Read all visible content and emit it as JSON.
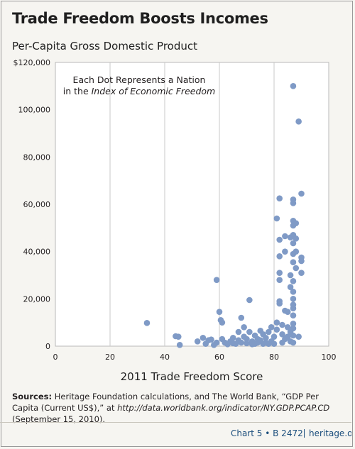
{
  "chart_data": {
    "type": "scatter",
    "title": "Trade Freedom Boosts Incomes",
    "subtitle": "Per-Capita Gross Domestic Product",
    "annotation_line1": "Each Dot Represents a Nation",
    "annotation_line2_prefix": "in the ",
    "annotation_line2_italic": "Index of Economic Freedom",
    "xlabel": "2011 Trade Freedom Score",
    "ylabel": "",
    "xlim": [
      0,
      100
    ],
    "ylim": [
      0,
      120000
    ],
    "x_ticks": [
      "0",
      "20",
      "40",
      "60",
      "80",
      "100"
    ],
    "y_ticks": [
      "0",
      "20,000",
      "40,000",
      "60,000",
      "80,000",
      "100,000",
      "$120,000"
    ],
    "grid": "vertical",
    "dot_color": "#7f9ac6",
    "points": [
      [
        33.5,
        9800
      ],
      [
        44,
        4200
      ],
      [
        45,
        4000
      ],
      [
        45.5,
        500
      ],
      [
        52,
        2000
      ],
      [
        54,
        3500
      ],
      [
        55,
        1000
      ],
      [
        56,
        2500
      ],
      [
        57,
        2800
      ],
      [
        58,
        500
      ],
      [
        59,
        1500
      ],
      [
        59,
        28000
      ],
      [
        60,
        14500
      ],
      [
        60.5,
        11000
      ],
      [
        61,
        10000
      ],
      [
        61,
        3000
      ],
      [
        62,
        1500
      ],
      [
        63,
        800
      ],
      [
        64,
        2000
      ],
      [
        65,
        1200
      ],
      [
        65,
        3500
      ],
      [
        66,
        1000
      ],
      [
        67,
        2500
      ],
      [
        67,
        6000
      ],
      [
        68,
        1500
      ],
      [
        68,
        12000
      ],
      [
        69,
        8000
      ],
      [
        69,
        4000
      ],
      [
        70,
        1200
      ],
      [
        70,
        3000
      ],
      [
        71,
        19500
      ],
      [
        71,
        6000
      ],
      [
        72,
        2000
      ],
      [
        72,
        800
      ],
      [
        73,
        4500
      ],
      [
        73,
        1000
      ],
      [
        74,
        3000
      ],
      [
        74,
        1500
      ],
      [
        75,
        6500
      ],
      [
        75,
        2500
      ],
      [
        76,
        1000
      ],
      [
        76,
        5000
      ],
      [
        77,
        1500
      ],
      [
        77,
        3500
      ],
      [
        78,
        6000
      ],
      [
        78,
        1000
      ],
      [
        79,
        8000
      ],
      [
        79,
        2000
      ],
      [
        80,
        4000
      ],
      [
        80,
        1000
      ],
      [
        81,
        10000
      ],
      [
        81,
        7000
      ],
      [
        81,
        54000
      ],
      [
        82,
        62500
      ],
      [
        82,
        45000
      ],
      [
        82,
        38000
      ],
      [
        82,
        31000
      ],
      [
        82,
        28000
      ],
      [
        82,
        19000
      ],
      [
        82,
        18000
      ],
      [
        83,
        9000
      ],
      [
        83,
        5000
      ],
      [
        83,
        1500
      ],
      [
        84,
        46500
      ],
      [
        84,
        40000
      ],
      [
        84,
        15000
      ],
      [
        84,
        3000
      ],
      [
        85,
        14500
      ],
      [
        85,
        8000
      ],
      [
        85,
        4000
      ],
      [
        86,
        46000
      ],
      [
        86,
        30000
      ],
      [
        86,
        25000
      ],
      [
        86,
        6000
      ],
      [
        86,
        2000
      ],
      [
        87,
        110000
      ],
      [
        87,
        62000
      ],
      [
        87,
        60500
      ],
      [
        87,
        53000
      ],
      [
        87,
        51000
      ],
      [
        87,
        47000
      ],
      [
        87,
        43500
      ],
      [
        87,
        39000
      ],
      [
        87,
        35500
      ],
      [
        87,
        27500
      ],
      [
        87,
        23000
      ],
      [
        87,
        20000
      ],
      [
        87,
        17500
      ],
      [
        87,
        16000
      ],
      [
        87,
        13000
      ],
      [
        87,
        9500
      ],
      [
        87,
        7500
      ],
      [
        87,
        4500
      ],
      [
        87,
        1500
      ],
      [
        88,
        52000
      ],
      [
        88,
        45500
      ],
      [
        88,
        40000
      ],
      [
        88,
        33000
      ],
      [
        89,
        95000
      ],
      [
        89,
        4000
      ],
      [
        90,
        64500
      ],
      [
        90,
        37500
      ],
      [
        90,
        36000
      ],
      [
        90,
        31000
      ]
    ]
  },
  "sources": {
    "label": "Sources:",
    "text_before": " Heritage Foundation calculations, and The World Bank, “GDP Per Capita (Current US$),” at ",
    "url": "http://data.worldbank.org/indicator/NY.GDP.PCAP.CD",
    "text_after": " (September 15, 2010)."
  },
  "footer": {
    "chart_label": "Chart 5 • B 2472",
    "site": "heritage.org",
    "accent_color": "#1a4d7c"
  }
}
